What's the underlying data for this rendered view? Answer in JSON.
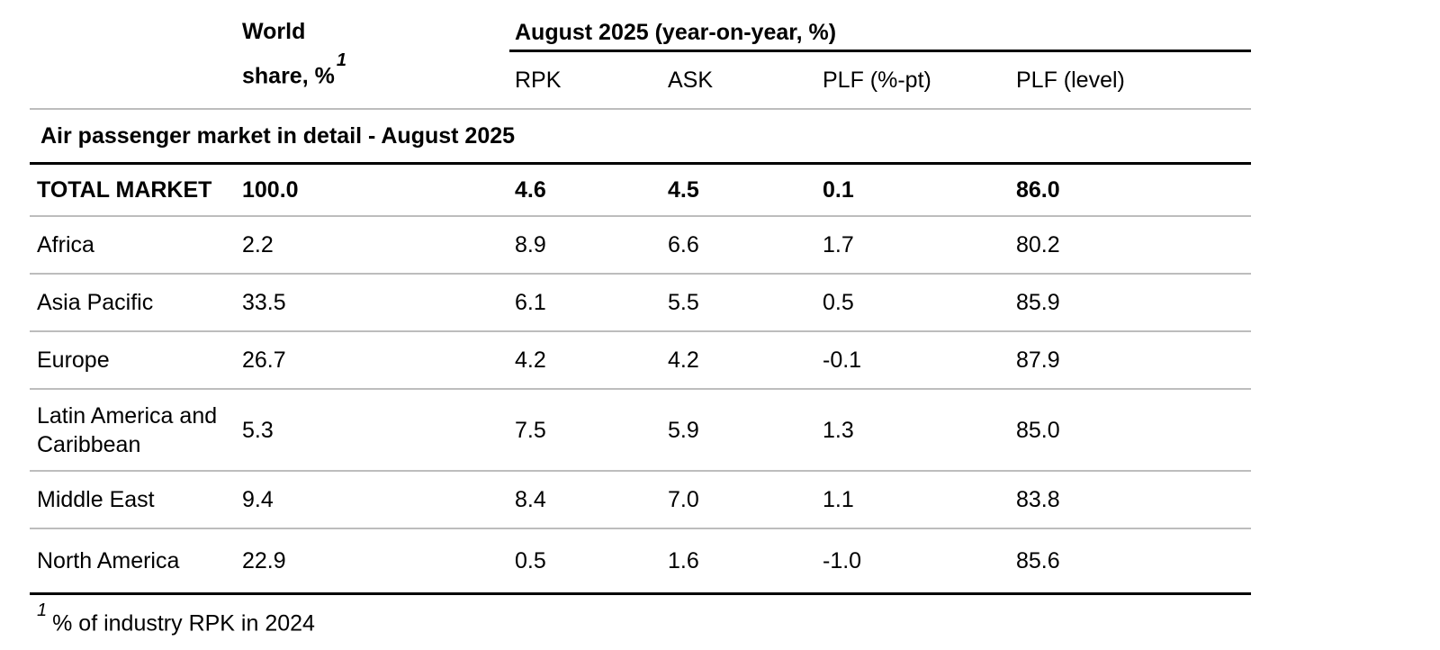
{
  "header": {
    "world_share_line1": "World",
    "world_share_line2": "share, %",
    "world_share_sup": "1",
    "group_header": "August 2025 (year-on-year, %)",
    "columns": {
      "rpk": "RPK",
      "ask": "ASK",
      "plf_pt": "PLF (%-pt)",
      "plf_level": "PLF (level)"
    }
  },
  "section_title": "Air passenger market in detail - August 2025",
  "total_row": {
    "label": "TOTAL MARKET",
    "world_share": "100.0",
    "rpk": "4.6",
    "ask": "4.5",
    "plf_pt": "0.1",
    "plf_level": "86.0"
  },
  "rows": [
    {
      "label": "Africa",
      "world_share": "2.2",
      "rpk": "8.9",
      "ask": "6.6",
      "plf_pt": "1.7",
      "plf_level": "80.2"
    },
    {
      "label": "Asia Pacific",
      "world_share": "33.5",
      "rpk": "6.1",
      "ask": "5.5",
      "plf_pt": "0.5",
      "plf_level": "85.9"
    },
    {
      "label": "Europe",
      "world_share": "26.7",
      "rpk": "4.2",
      "ask": "4.2",
      "plf_pt": "-0.1",
      "plf_level": "87.9"
    },
    {
      "label": "Latin America and Caribbean",
      "world_share": "5.3",
      "rpk": "7.5",
      "ask": "5.9",
      "plf_pt": "1.3",
      "plf_level": "85.0"
    },
    {
      "label": "Middle East",
      "world_share": "9.4",
      "rpk": "8.4",
      "ask": "7.0",
      "plf_pt": "1.1",
      "plf_level": "83.8"
    },
    {
      "label": "North America",
      "world_share": "22.9",
      "rpk": "0.5",
      "ask": "1.6",
      "plf_pt": "-1.0",
      "plf_level": "85.6"
    }
  ],
  "footnote": {
    "marker": "1",
    "text": "% of industry RPK in 2024"
  },
  "colors": {
    "text": "#000000",
    "background": "#ffffff",
    "rule_black": "#000000",
    "rule_gray": "#bdbdbd"
  }
}
